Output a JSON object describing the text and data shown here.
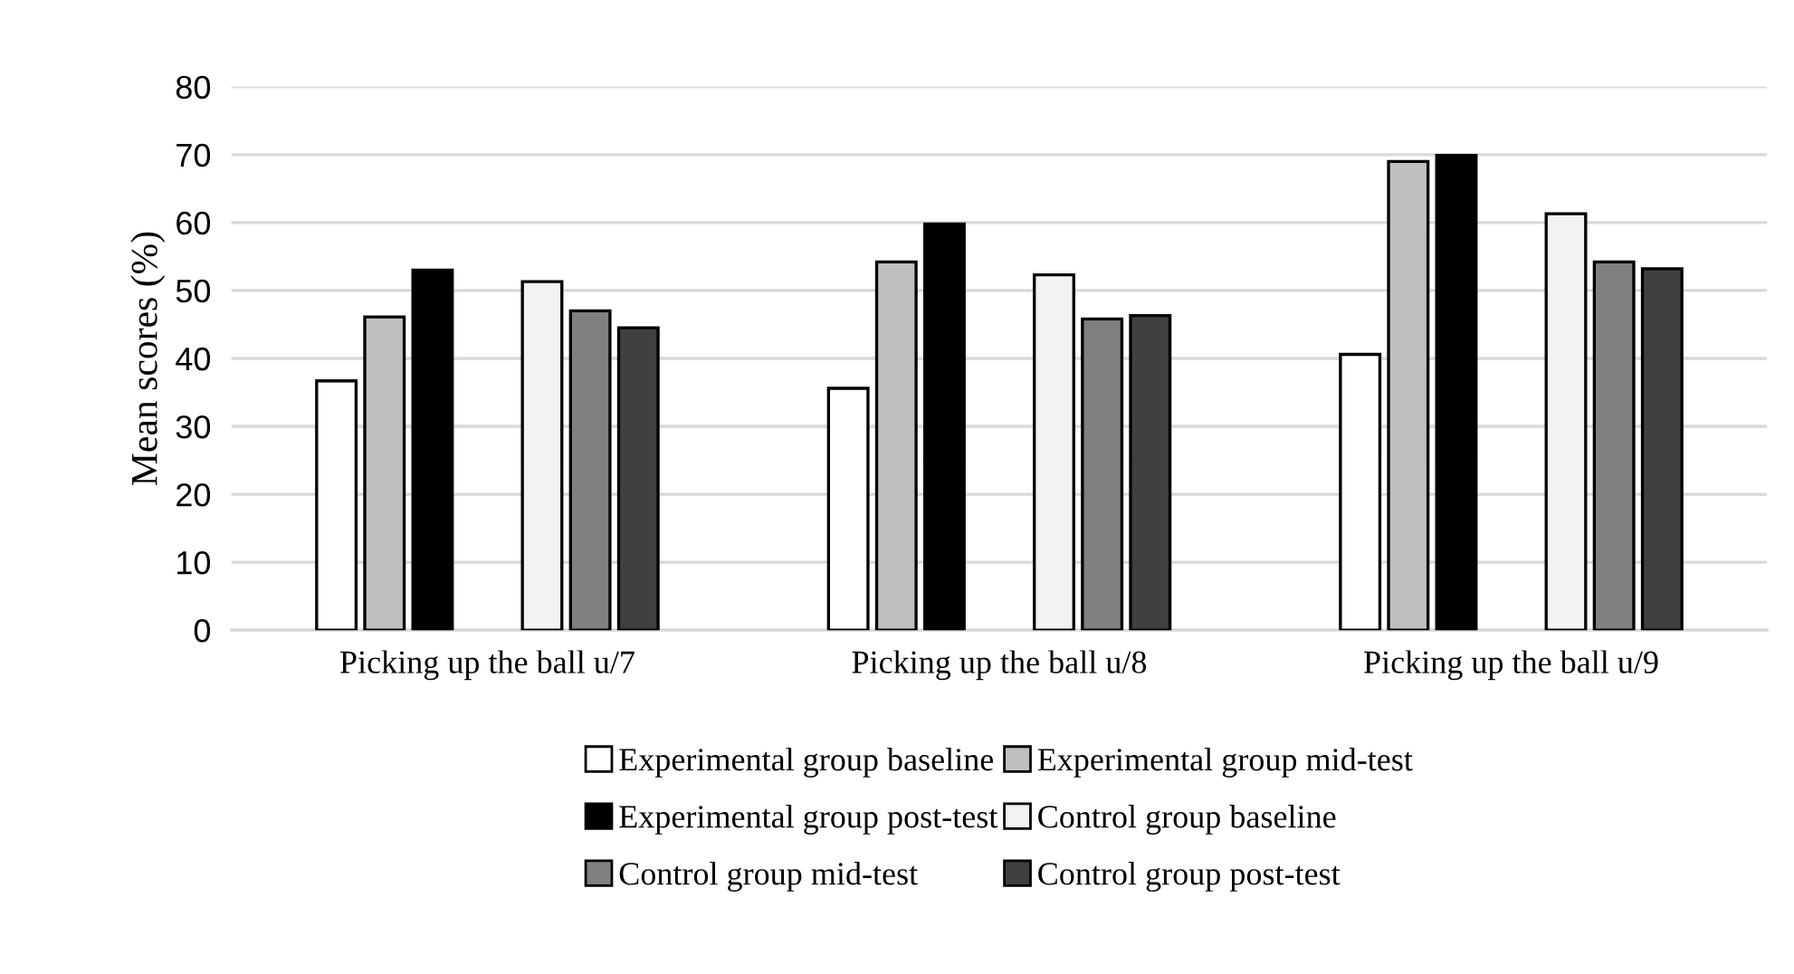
{
  "chart_data": {
    "type": "bar",
    "ylabel": "Mean scores (%)",
    "categories": [
      "Picking up the ball u/7",
      "Picking up the ball u/8",
      "Picking up the ball u/9"
    ],
    "series": [
      {
        "name": "Experimental group baseline",
        "color": "#ffffff",
        "values": [
          36.7,
          35.6,
          40.6
        ]
      },
      {
        "name": "Experimental group mid-test",
        "color": "#bfbfbf",
        "values": [
          46.1,
          54.2,
          69.0
        ]
      },
      {
        "name": "Experimental group post-test",
        "color": "#000000",
        "values": [
          53.0,
          59.8,
          69.9
        ]
      },
      {
        "name": "Control group baseline",
        "color": "#f2f2f2",
        "values": [
          51.3,
          52.3,
          61.3
        ]
      },
      {
        "name": "Control group mid-test",
        "color": "#808080",
        "values": [
          47.0,
          45.8,
          54.2
        ]
      },
      {
        "name": "Control group post-test",
        "color": "#404040",
        "values": [
          44.5,
          46.3,
          53.2
        ]
      }
    ],
    "ylim": [
      0,
      80
    ],
    "yticks": [
      0,
      10,
      20,
      30,
      40,
      50,
      60,
      70,
      80
    ],
    "grid": "y",
    "legend": "bottom"
  }
}
